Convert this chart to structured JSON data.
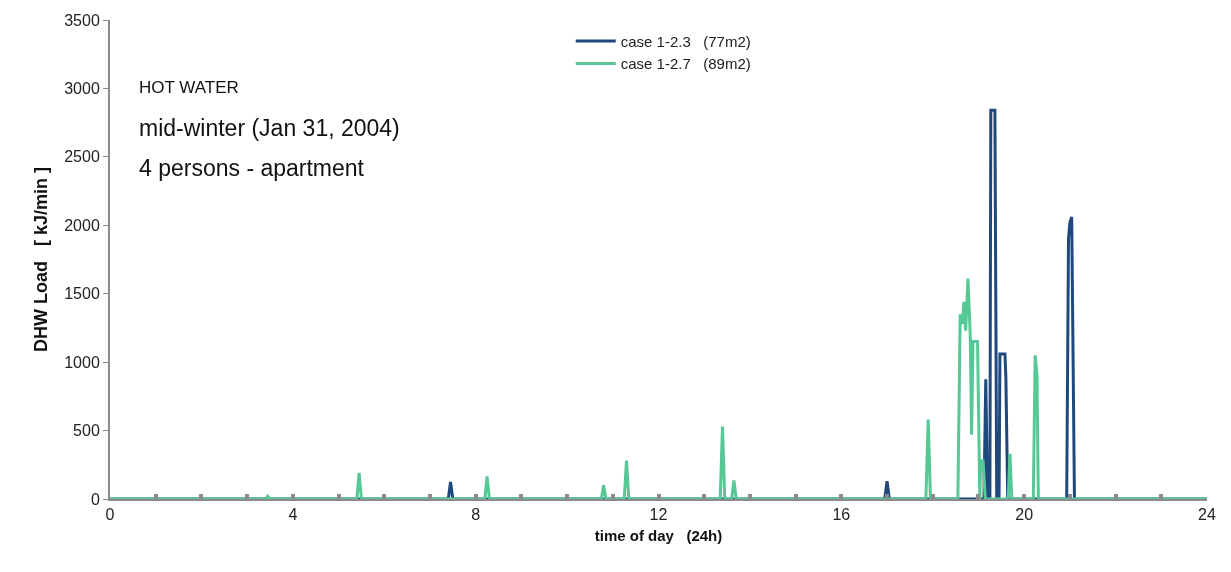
{
  "chart_data": {
    "type": "line",
    "xlabel": "time of day   (24h)",
    "ylabel": "DHW Load   [ kJ/min ]",
    "annotations": [
      "HOT WATER",
      "mid-winter (Jan 31, 2004)",
      "4 persons - apartment"
    ],
    "xlim": [
      0,
      24
    ],
    "ylim": [
      0,
      3500
    ],
    "xticks": [
      0,
      {
        "value": 1,
        "label": null
      },
      {
        "value": 2,
        "label": null
      },
      {
        "value": 3,
        "label": null
      },
      4,
      {
        "value": 5,
        "label": null
      },
      {
        "value": 6,
        "label": null
      },
      {
        "value": 7,
        "label": null
      },
      8,
      {
        "value": 9,
        "label": null
      },
      {
        "value": 10,
        "label": null
      },
      {
        "value": 11,
        "label": null
      },
      12,
      {
        "value": 13,
        "label": null
      },
      {
        "value": 14,
        "label": null
      },
      {
        "value": 15,
        "label": null
      },
      16,
      {
        "value": 17,
        "label": null
      },
      {
        "value": 18,
        "label": null
      },
      {
        "value": 19,
        "label": null
      },
      20,
      {
        "value": 21,
        "label": null
      },
      {
        "value": 22,
        "label": null
      },
      {
        "value": 23,
        "label": null
      },
      24
    ],
    "yticks": [
      0,
      500,
      1000,
      1500,
      2000,
      2500,
      3000,
      3500
    ],
    "legend": "top",
    "marker": "none",
    "line_style": "solid",
    "series": [
      {
        "name": "case 1-2.3   (77m2)",
        "color": "#1f497d",
        "x": [
          0,
          7.4,
          7.45,
          7.5,
          16.95,
          17.0,
          17.05,
          19.12,
          19.16,
          19.2,
          19.25,
          19.27,
          19.36,
          19.4,
          19.45,
          19.47,
          19.58,
          19.6,
          19.64,
          20.93,
          20.97,
          21.0,
          21.04,
          21.1,
          24
        ],
        "values": [
          0,
          0,
          125,
          0,
          0,
          130,
          0,
          0,
          875,
          0,
          0,
          2840,
          2840,
          0,
          0,
          1060,
          1060,
          885,
          0,
          0,
          1900,
          2020,
          2060,
          0,
          0
        ]
      },
      {
        "name": "case 1-2.7   (89m2)",
        "color": "#55c896",
        "x": [
          0,
          3.4,
          3.45,
          3.5,
          5.4,
          5.45,
          5.5,
          8.2,
          8.25,
          8.3,
          10.75,
          10.8,
          10.85,
          11.25,
          11.3,
          11.35,
          13.35,
          13.4,
          13.45,
          13.6,
          13.65,
          13.7,
          17.85,
          17.9,
          17.95,
          18.55,
          18.6,
          18.65,
          18.68,
          18.72,
          18.77,
          18.82,
          18.85,
          18.88,
          18.98,
          19.03,
          19.05,
          19.1,
          19.15,
          19.65,
          19.69,
          19.73,
          20.2,
          20.24,
          20.28,
          20.31,
          24
        ],
        "values": [
          0,
          0,
          20,
          0,
          0,
          190,
          0,
          0,
          165,
          0,
          0,
          100,
          0,
          0,
          280,
          0,
          0,
          530,
          0,
          0,
          135,
          0,
          0,
          580,
          0,
          0,
          1350,
          1280,
          1440,
          1230,
          1610,
          1200,
          470,
          1150,
          1150,
          0,
          280,
          280,
          0,
          0,
          330,
          0,
          0,
          1050,
          910,
          0,
          0
        ]
      }
    ]
  }
}
